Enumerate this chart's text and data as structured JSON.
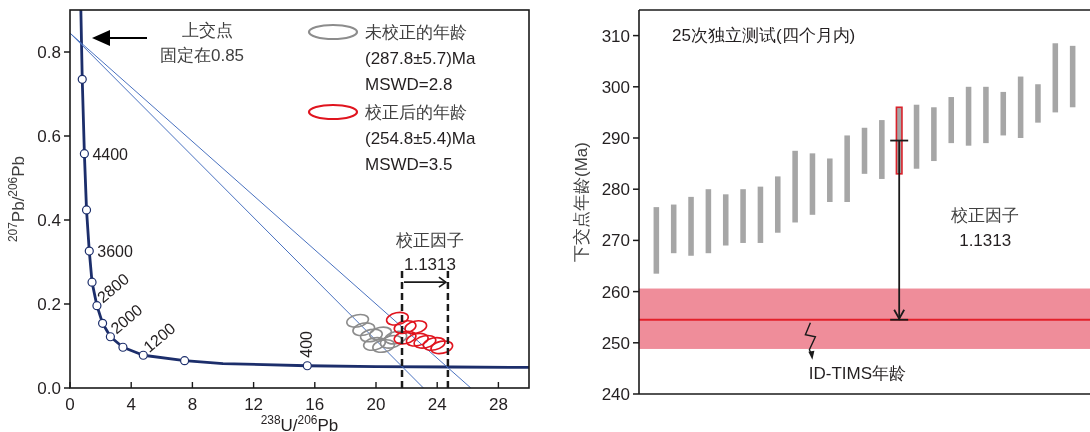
{
  "chart_data": [
    {
      "type": "line",
      "xlabel": "$^{238}$U/$^{206}$Pb",
      "ylabel": "$^{207}$Pb/$^{206}$Pb",
      "xlim": [
        0,
        30
      ],
      "ylim": [
        0,
        0.9
      ],
      "xticks": [
        0,
        4,
        8,
        12,
        16,
        20,
        24,
        28
      ],
      "yticks": [
        {
          "value": 0,
          "label": "0.0"
        },
        {
          "value": 0.2,
          "label": "0.2"
        },
        {
          "value": 0.4,
          "label": "0.4"
        },
        {
          "value": 0.6,
          "label": "0.6"
        },
        {
          "value": 0.8,
          "label": "0.8"
        }
      ],
      "legend": "top right",
      "series": [
        {
          "type": "line",
          "color": "#1c2e6b",
          "x": [
            0.71,
            0.8,
            0.94,
            1.08,
            1.26,
            1.44,
            1.76,
            2.13,
            2.64,
            3.46,
            4.79,
            7.49,
            10,
            15.51,
            20,
            25,
            30
          ],
          "values": [
            0.9,
            0.735,
            0.558,
            0.424,
            0.326,
            0.252,
            0.196,
            0.154,
            0.122,
            0.097,
            0.078,
            0.065,
            0.058,
            0.053,
            0.051,
            0.05,
            0.049
          ]
        },
        {
          "type": "line",
          "color": "#4a72c0",
          "x": [
            0,
            23.1
          ],
          "values": [
            0.845,
            0
          ]
        },
        {
          "type": "line",
          "color": "#4a72c0",
          "x": [
            0,
            26.2
          ],
          "values": [
            0.845,
            0
          ]
        },
        {
          "type": "scatter",
          "marker": "circle",
          "color": "#1c2e6b",
          "x": [
            15.51,
            7.49,
            4.79,
            3.46,
            2.64,
            2.13,
            1.76,
            1.44,
            1.26,
            1.08,
            0.94,
            0.8
          ],
          "values": [
            0.053,
            0.065,
            0.078,
            0.097,
            0.122,
            0.154,
            0.196,
            0.252,
            0.326,
            0.424,
            0.558,
            0.735
          ]
        },
        {
          "type": "scatter",
          "name": "未校正的年龄",
          "color": "#8c8c8c",
          "x": [
            18.8,
            19.2,
            19.7,
            20.3,
            19.9,
            20.5,
            21.0,
            21.3
          ],
          "values": [
            0.16,
            0.14,
            0.125,
            0.13,
            0.105,
            0.1,
            0.11,
            0.12
          ]
        },
        {
          "type": "scatter",
          "name": "校正后的年龄",
          "color": "#e0141e",
          "x": [
            21.4,
            21.9,
            22.6,
            21.9,
            22.7,
            23.2,
            23.8,
            24.3
          ],
          "values": [
            0.165,
            0.145,
            0.145,
            0.12,
            0.115,
            0.11,
            0.105,
            0.097
          ]
        }
      ],
      "ref_lines": [
        {
          "axis": "x",
          "value": 21.7,
          "color": "#1a1a1a",
          "line_style": "dashed"
        },
        {
          "axis": "x",
          "value": 24.7,
          "color": "#1a1a1a",
          "line_style": "dashed"
        }
      ],
      "annotations": [
        "上交点",
        "固定在0.85",
        "(287.8±5.7)Ma",
        "MSWD=2.8",
        "(254.8±5.4)Ma",
        "MSWD=3.5",
        "校正因子",
        "1.1313",
        {
          "text": "400",
          "x": 15.51,
          "y": 0.053
        },
        {
          "text": "1200",
          "x": 4.79,
          "y": 0.078
        },
        {
          "text": "2000",
          "x": 2.64,
          "y": 0.122
        },
        {
          "text": "2800",
          "x": 1.76,
          "y": 0.196
        },
        {
          "text": "3600",
          "x": 1.26,
          "y": 0.326
        },
        {
          "text": "4400",
          "x": 0.94,
          "y": 0.558
        }
      ]
    },
    {
      "type": "bar",
      "ylabel": "下交点年龄(Ma)",
      "ylim": [
        240,
        315
      ],
      "yticks": [
        240,
        250,
        260,
        270,
        280,
        290,
        300,
        310
      ],
      "categories": [
        null,
        null,
        null,
        null,
        null,
        null,
        null,
        null,
        null,
        null,
        null,
        null,
        null,
        null,
        null,
        null,
        null,
        null,
        null,
        null,
        null,
        null,
        null,
        null,
        null
      ],
      "base": [
        263.5,
        267.5,
        267,
        267.5,
        269,
        269.5,
        269.5,
        271.5,
        273.5,
        275,
        277.5,
        277.5,
        283,
        282,
        283,
        284,
        285.5,
        289,
        288.5,
        289,
        290.5,
        290,
        293,
        295,
        296
      ],
      "values": [
        13,
        9.5,
        11.5,
        12.5,
        10,
        10.5,
        11,
        11,
        14,
        12,
        8.5,
        13,
        9,
        11.5,
        13,
        12.5,
        10.5,
        9,
        11.5,
        11,
        8.5,
        12,
        7.5,
        13.5,
        12
      ],
      "colors": [
        "#a6a6a6",
        "#a6a6a6",
        "#a6a6a6",
        "#a6a6a6",
        "#a6a6a6",
        "#a6a6a6",
        "#a6a6a6",
        "#a6a6a6",
        "#a6a6a6",
        "#a6a6a6",
        "#a6a6a6",
        "#a6a6a6",
        "#a6a6a6",
        "#a6a6a6",
        "#d9222b",
        "#a6a6a6",
        "#a6a6a6",
        "#a6a6a6",
        "#a6a6a6",
        "#a6a6a6",
        "#a6a6a6",
        "#a6a6a6",
        "#a6a6a6",
        "#a6a6a6",
        "#a6a6a6"
      ],
      "ref_lines": [
        {
          "axis": "y",
          "value": 254.5,
          "color": "#e3202a"
        }
      ],
      "bands": [
        {
          "axis": "y",
          "from": 248.8,
          "to": 260.6,
          "color": "#ef8d9a",
          "label": "ID-TIMS年龄"
        }
      ],
      "annotations": [
        "25次独立测试(四个月内)",
        "校正因子",
        "1.1313"
      ]
    }
  ]
}
